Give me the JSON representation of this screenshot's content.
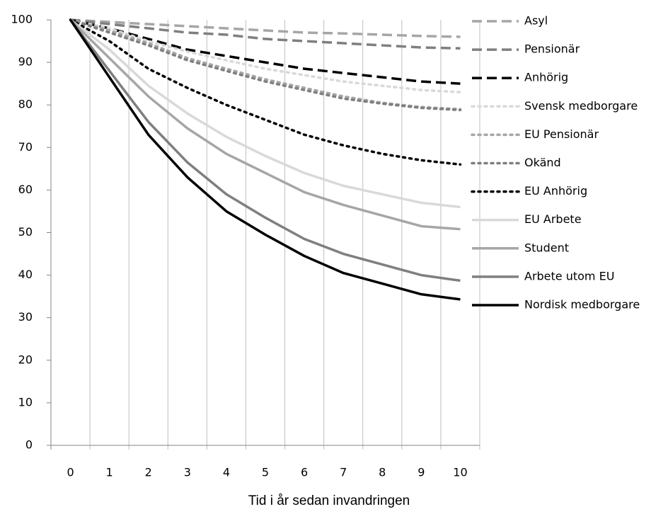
{
  "chart_data": {
    "type": "line",
    "x_label": "Tid i år sedan invandringen",
    "categories": [
      "0",
      "1",
      "2",
      "3",
      "4",
      "5",
      "6",
      "7",
      "8",
      "9",
      "10"
    ],
    "ylim": [
      0,
      100
    ],
    "yticks": [
      0,
      10,
      20,
      30,
      40,
      50,
      60,
      70,
      80,
      90,
      100
    ],
    "legend": "right",
    "series": [
      {
        "name": "Asyl",
        "color": "#a6a6a6",
        "style": "dashed",
        "values": [
          100,
          99.5,
          99,
          98.5,
          98,
          97.5,
          97,
          96.8,
          96.5,
          96.2,
          96
        ]
      },
      {
        "name": "Pensionär",
        "color": "#7f7f7f",
        "style": "dashed",
        "values": [
          100,
          99,
          98,
          97,
          96.5,
          95.5,
          95,
          94.5,
          94,
          93.5,
          93.3
        ]
      },
      {
        "name": "Anhörig",
        "color": "#000000",
        "style": "dashed",
        "values": [
          100,
          98,
          95.5,
          93,
          91.5,
          90,
          88.5,
          87.5,
          86.5,
          85.5,
          85
        ]
      },
      {
        "name": "Svensk medborgare",
        "color": "#d9d9d9",
        "style": "dotted",
        "values": [
          100,
          98,
          95,
          92.5,
          90.5,
          88.5,
          87,
          85.5,
          84.5,
          83.5,
          83
        ]
      },
      {
        "name": "EU Pensionär",
        "color": "#a6a6a6",
        "style": "dotted",
        "values": [
          100,
          97.5,
          94.5,
          91,
          88.5,
          86,
          84,
          82,
          80.5,
          79.5,
          79
        ]
      },
      {
        "name": "Okänd",
        "color": "#7f7f7f",
        "style": "dotted",
        "values": [
          100,
          97,
          94,
          90.5,
          88,
          85.5,
          83.5,
          81.5,
          80.3,
          79.3,
          78.8
        ]
      },
      {
        "name": "EU Anhörig",
        "color": "#000000",
        "style": "dotted",
        "values": [
          100,
          95,
          88.5,
          84,
          80,
          76.5,
          73,
          70.5,
          68.5,
          67,
          66
        ]
      },
      {
        "name": "EU Arbete",
        "color": "#d9d9d9",
        "style": "solid",
        "values": [
          100,
          93,
          84.5,
          78,
          72.5,
          68,
          64,
          61,
          59,
          57,
          56
        ]
      },
      {
        "name": "Student",
        "color": "#a6a6a6",
        "style": "solid",
        "values": [
          100,
          91,
          82,
          74.5,
          68.5,
          64,
          59.5,
          56.5,
          54,
          51.5,
          50.8
        ]
      },
      {
        "name": "Arbete utom EU",
        "color": "#7f7f7f",
        "style": "solid",
        "values": [
          100,
          88,
          76,
          66.5,
          59,
          53.5,
          48.5,
          45,
          42.5,
          40,
          38.7
        ]
      },
      {
        "name": "Nordisk medborgare",
        "color": "#000000",
        "style": "solid",
        "values": [
          100,
          86.5,
          73,
          63,
          55,
          49.5,
          44.5,
          40.5,
          38,
          35.5,
          34.3
        ]
      }
    ]
  }
}
